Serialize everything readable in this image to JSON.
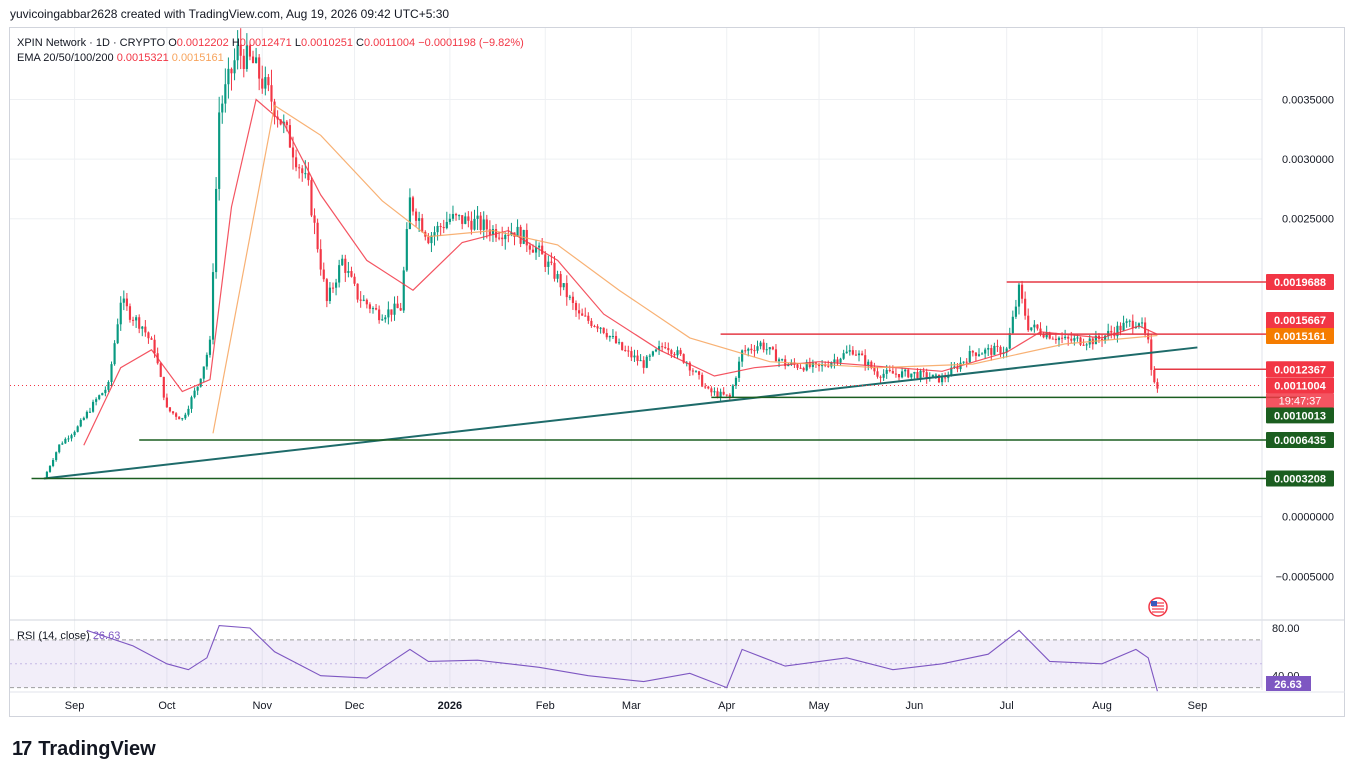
{
  "header": {
    "text": "yuvicoingabbar2628 created with TradingView.com, Aug 19, 2026 09:42 UTC+5:30"
  },
  "legend": {
    "symbol": "XPIN Network · 1D · CRYPTO",
    "o_label": "O",
    "o_value": "0.0012202",
    "h_label": "H",
    "h_value": "0.0012471",
    "l_label": "L",
    "l_value": "0.0010251",
    "c_label": "C",
    "c_value": "0.0011004",
    "change": "−0.0001198 (−9.82%)",
    "ema_label": "EMA 20/50/100/200",
    "ema1": "0.0015321",
    "ema2": "0.0015161",
    "rsi_label": "RSI (14, close)",
    "rsi_value": "26.63"
  },
  "colors": {
    "up": "#089981",
    "down": "#f23645",
    "ema20": "#f23645",
    "ema50": "#f7a35c",
    "trend": "#1e6b6a",
    "support": "#1b5e20",
    "resistance": "#e53945",
    "rsi": "#7e57c2"
  },
  "footer": {
    "logo_mark": "17",
    "logo_text": "TradingView"
  },
  "chart_data": {
    "type": "candlestick",
    "price_ticks": [
      "0.0035000",
      "0.0030000",
      "0.0025000",
      "0.0000000",
      "−0.0005000"
    ],
    "price_tick_values": [
      0.0035,
      0.003,
      0.0025,
      0.0,
      -0.0005
    ],
    "ylim": [
      -0.00085,
      0.0041
    ],
    "x_labels": [
      "Sep",
      "Oct",
      "Nov",
      "Dec",
      "2026",
      "Feb",
      "Mar",
      "Apr",
      "May",
      "Jun",
      "Jul",
      "Aug",
      "Sep"
    ],
    "x_label_dates": [
      "2025-09-01",
      "2025-10-01",
      "2025-11-01",
      "2025-12-01",
      "2026-01-01",
      "2026-02-01",
      "2026-03-01",
      "2026-04-01",
      "2026-05-01",
      "2026-06-01",
      "2026-07-01",
      "2026-08-01",
      "2026-09-01"
    ],
    "xlim": [
      "2025-08-11",
      "2026-09-22"
    ],
    "price_path": [
      [
        "2025-08-22",
        0.00032
      ],
      [
        "2025-08-27",
        0.0006
      ],
      [
        "2025-09-02",
        0.00075
      ],
      [
        "2025-09-08",
        0.00098
      ],
      [
        "2025-09-12",
        0.0011
      ],
      [
        "2025-09-16",
        0.00182
      ],
      [
        "2025-09-19",
        0.0017
      ],
      [
        "2025-09-23",
        0.0016
      ],
      [
        "2025-09-27",
        0.0014
      ],
      [
        "2025-10-01",
        0.0009
      ],
      [
        "2025-10-06",
        0.00082
      ],
      [
        "2025-10-11",
        0.0011
      ],
      [
        "2025-10-15",
        0.00145
      ],
      [
        "2025-10-18",
        0.0034
      ],
      [
        "2025-10-24",
        0.0039
      ],
      [
        "2025-10-29",
        0.0038
      ],
      [
        "2025-11-04",
        0.0035
      ],
      [
        "2025-11-10",
        0.00315
      ],
      [
        "2025-11-16",
        0.00275
      ],
      [
        "2025-11-22",
        0.0018
      ],
      [
        "2025-11-27",
        0.00215
      ],
      [
        "2025-12-02",
        0.00185
      ],
      [
        "2025-12-09",
        0.0017
      ],
      [
        "2025-12-16",
        0.00175
      ],
      [
        "2025-12-19",
        0.00265
      ],
      [
        "2025-12-25",
        0.00235
      ],
      [
        "2026-01-01",
        0.0025
      ],
      [
        "2026-01-08",
        0.00248
      ],
      [
        "2026-01-15",
        0.0024
      ],
      [
        "2026-01-22",
        0.0024
      ],
      [
        "2026-01-29",
        0.00225
      ],
      [
        "2026-02-05",
        0.002
      ],
      [
        "2026-02-12",
        0.00168
      ],
      [
        "2026-02-19",
        0.0016
      ],
      [
        "2026-02-26",
        0.0014
      ],
      [
        "2026-03-05",
        0.00128
      ],
      [
        "2026-03-12",
        0.00145
      ],
      [
        "2026-03-19",
        0.0013
      ],
      [
        "2026-03-26",
        0.00105
      ],
      [
        "2026-04-02",
        0.001
      ],
      [
        "2026-04-06",
        0.00138
      ],
      [
        "2026-04-12",
        0.00145
      ],
      [
        "2026-04-20",
        0.00128
      ],
      [
        "2026-05-01",
        0.00125
      ],
      [
        "2026-05-12",
        0.0014
      ],
      [
        "2026-05-20",
        0.0012
      ],
      [
        "2026-06-01",
        0.0012
      ],
      [
        "2026-06-10",
        0.00115
      ],
      [
        "2026-06-20",
        0.00138
      ],
      [
        "2026-07-01",
        0.0014
      ],
      [
        "2026-07-05",
        0.0019
      ],
      [
        "2026-07-08",
        0.0016
      ],
      [
        "2026-07-20",
        0.00148
      ],
      [
        "2026-07-30",
        0.00148
      ],
      [
        "2026-08-08",
        0.0016
      ],
      [
        "2026-08-13",
        0.00165
      ],
      [
        "2026-08-16",
        0.00145
      ],
      [
        "2026-08-17",
        0.0012
      ],
      [
        "2026-08-19",
        0.0011
      ]
    ],
    "ema20_path": [
      [
        "2025-09-04",
        0.0006
      ],
      [
        "2025-09-16",
        0.00125
      ],
      [
        "2025-09-26",
        0.0014
      ],
      [
        "2025-10-06",
        0.00105
      ],
      [
        "2025-10-15",
        0.00115
      ],
      [
        "2025-10-22",
        0.0026
      ],
      [
        "2025-10-30",
        0.0035
      ],
      [
        "2025-11-08",
        0.0033
      ],
      [
        "2025-11-20",
        0.0027
      ],
      [
        "2025-12-05",
        0.00215
      ],
      [
        "2025-12-20",
        0.0019
      ],
      [
        "2026-01-05",
        0.0023
      ],
      [
        "2026-01-20",
        0.0024
      ],
      [
        "2026-02-05",
        0.00215
      ],
      [
        "2026-02-20",
        0.0017
      ],
      [
        "2026-03-10",
        0.0014
      ],
      [
        "2026-03-28",
        0.00118
      ],
      [
        "2026-04-10",
        0.00125
      ],
      [
        "2026-05-01",
        0.0013
      ],
      [
        "2026-06-10",
        0.00122
      ],
      [
        "2026-07-01",
        0.00138
      ],
      [
        "2026-07-12",
        0.00155
      ],
      [
        "2026-08-01",
        0.0015
      ],
      [
        "2026-08-13",
        0.0016
      ],
      [
        "2026-08-19",
        0.00153
      ]
    ],
    "ema50_path": [
      [
        "2025-10-16",
        0.0007
      ],
      [
        "2025-10-24",
        0.0018
      ],
      [
        "2025-11-05",
        0.00345
      ],
      [
        "2025-11-20",
        0.0032
      ],
      [
        "2025-12-10",
        0.00265
      ],
      [
        "2025-12-25",
        0.00235
      ],
      [
        "2026-01-15",
        0.0024
      ],
      [
        "2026-02-05",
        0.00228
      ],
      [
        "2026-02-25",
        0.0019
      ],
      [
        "2026-03-20",
        0.0015
      ],
      [
        "2026-04-15",
        0.0013
      ],
      [
        "2026-05-20",
        0.00125
      ],
      [
        "2026-06-20",
        0.00128
      ],
      [
        "2026-07-20",
        0.00145
      ],
      [
        "2026-08-19",
        0.00152
      ]
    ],
    "trendline": [
      [
        "2025-08-22",
        0.00032
      ],
      [
        "2026-09-01",
        0.00142
      ]
    ],
    "horizontal_levels": [
      {
        "label": "0.0019688",
        "value": 0.0019688,
        "kind": "resistance",
        "from": "2026-07-01"
      },
      {
        "label": "0.0015667",
        "value": 0.0015667,
        "kind": "resistance-tag",
        "from": null
      },
      {
        "label": "0.0015321",
        "value": 0.0015321,
        "kind": "ema20-tag",
        "from": "2026-03-30"
      },
      {
        "label": "0.0015161",
        "value": 0.0015161,
        "kind": "ema50-tag",
        "from": null
      },
      {
        "label": "0.0012367",
        "value": 0.0012367,
        "kind": "resistance",
        "from": "2026-08-18"
      },
      {
        "label": "0.0011004",
        "value": 0.0011004,
        "kind": "last-price",
        "from": null
      },
      {
        "label": "0.0010013",
        "value": 0.0010013,
        "kind": "support",
        "from": "2026-03-27"
      },
      {
        "label": "0.0006435",
        "value": 0.0006435,
        "kind": "support",
        "from": "2025-09-22"
      },
      {
        "label": "0.0003208",
        "value": 0.0003208,
        "kind": "support",
        "from": "2025-08-18"
      }
    ],
    "countdown": "19:47:37",
    "rsi": {
      "ticks": [
        "80.00",
        "40.00"
      ],
      "tick_values": [
        80,
        40
      ],
      "upper_band": 70,
      "lower_band": 30,
      "ylim": [
        28,
        85
      ],
      "value_label": "26.63",
      "path": [
        [
          "2025-09-05",
          78
        ],
        [
          "2025-09-20",
          65
        ],
        [
          "2025-10-01",
          50
        ],
        [
          "2025-10-08",
          45
        ],
        [
          "2025-10-14",
          55
        ],
        [
          "2025-10-18",
          82
        ],
        [
          "2025-10-28",
          80
        ],
        [
          "2025-11-05",
          60
        ],
        [
          "2025-11-20",
          40
        ],
        [
          "2025-12-05",
          38
        ],
        [
          "2025-12-19",
          62
        ],
        [
          "2025-12-25",
          52
        ],
        [
          "2026-01-10",
          53
        ],
        [
          "2026-01-30",
          47
        ],
        [
          "2026-02-15",
          40
        ],
        [
          "2026-03-05",
          35
        ],
        [
          "2026-03-20",
          42
        ],
        [
          "2026-04-01",
          30
        ],
        [
          "2026-04-06",
          62
        ],
        [
          "2026-04-20",
          48
        ],
        [
          "2026-05-10",
          55
        ],
        [
          "2026-05-25",
          45
        ],
        [
          "2026-06-10",
          50
        ],
        [
          "2026-06-25",
          58
        ],
        [
          "2026-07-05",
          78
        ],
        [
          "2026-07-15",
          52
        ],
        [
          "2026-08-01",
          50
        ],
        [
          "2026-08-12",
          62
        ],
        [
          "2026-08-16",
          55
        ],
        [
          "2026-08-19",
          27
        ]
      ]
    }
  }
}
